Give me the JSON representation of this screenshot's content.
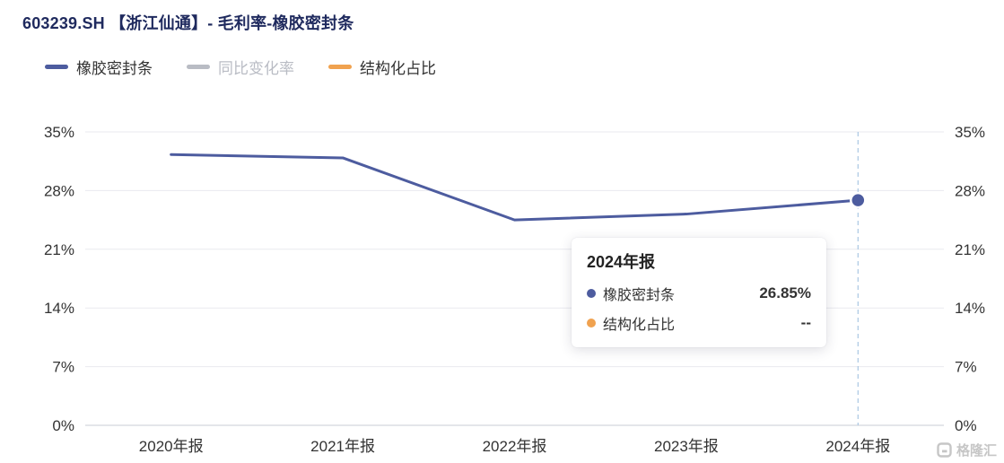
{
  "header": {
    "title": "603239.SH 【浙江仙通】- 毛利率-橡胶密封条"
  },
  "legend": [
    {
      "label": "橡胶密封条",
      "color": "#4d5c9f",
      "active": true
    },
    {
      "label": "同比变化率",
      "color": "#b9bcc4",
      "active": false
    },
    {
      "label": "结构化占比",
      "color": "#f0a24f",
      "active": true
    }
  ],
  "chart_data": {
    "type": "line",
    "title": "603239.SH 【浙江仙通】- 毛利率-橡胶密封条",
    "categories": [
      "2020年报",
      "2021年报",
      "2022年报",
      "2023年报",
      "2024年报"
    ],
    "series": [
      {
        "name": "橡胶密封条",
        "values": [
          32.3,
          31.9,
          24.5,
          25.2,
          26.85
        ],
        "color": "#4d5c9f"
      }
    ],
    "ylim": [
      0,
      35
    ],
    "yticks": [
      0,
      7,
      14,
      21,
      28,
      35
    ],
    "ytick_suffix": "%",
    "grid": true,
    "legend_position": "top-left",
    "highlight_index": 4,
    "guide_line_color": "#a9c6e3"
  },
  "tooltip": {
    "title": "2024年报",
    "rows": [
      {
        "label": "橡胶密封条",
        "value": "26.85%",
        "color": "#4d5c9f"
      },
      {
        "label": "结构化占比",
        "value": "--",
        "color": "#f0a24f"
      }
    ]
  },
  "watermark": {
    "text": "格隆汇"
  }
}
